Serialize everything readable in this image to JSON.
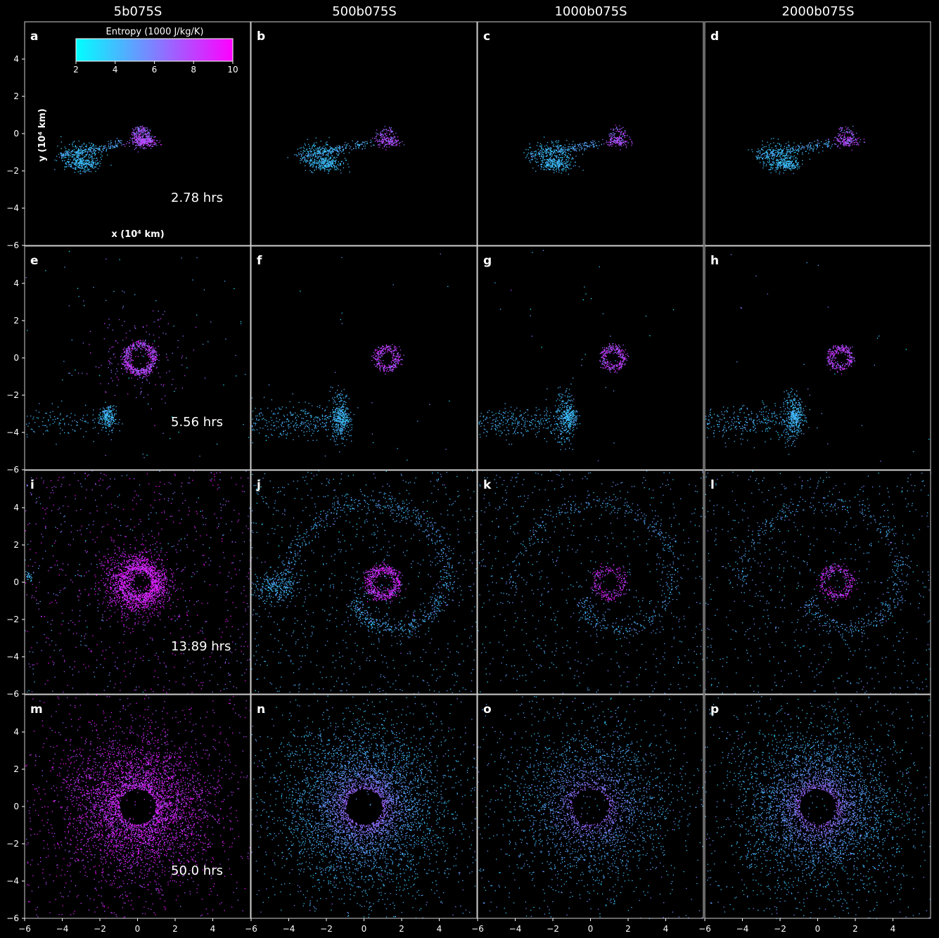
{
  "chart_data": {
    "type": "scatter",
    "columns": [
      "5b075S",
      "500b075S",
      "1000b075S",
      "2000b075S"
    ],
    "panel_letters": [
      "a",
      "b",
      "c",
      "d",
      "e",
      "f",
      "g",
      "h",
      "i",
      "j",
      "k",
      "l",
      "m",
      "n",
      "o",
      "p"
    ],
    "row_times": [
      "2.78 hrs",
      "5.56 hrs",
      "13.89 hrs",
      "50.0 hrs"
    ],
    "xlabel": "x (10⁴ km)",
    "ylabel": "y (10⁴ km)",
    "xlim": [
      -6,
      6
    ],
    "ylim": [
      -6,
      6
    ],
    "xticks": [
      -6,
      -4,
      -2,
      0,
      2,
      4
    ],
    "yticks": [
      -6,
      -4,
      -2,
      0,
      2,
      4
    ],
    "grid": false,
    "colorbar": {
      "label": "Entropy (1000 J/kg/K)",
      "min": 2,
      "max": 10,
      "ticks": [
        2,
        4,
        6,
        8,
        10
      ],
      "color_min": "#00ffff",
      "color_max": "#ff00ff"
    }
  }
}
